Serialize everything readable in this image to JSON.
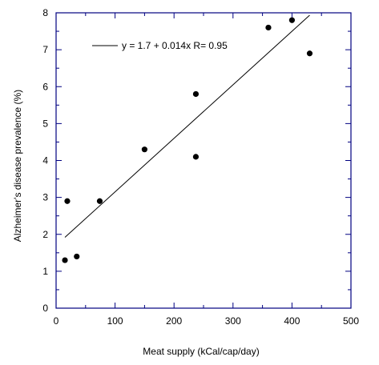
{
  "chart_data": {
    "type": "scatter",
    "xlabel": "Meat supply (kCal/cap/day)",
    "ylabel": "Alzheimer's disease prevalence (%)",
    "xlim": [
      0,
      500
    ],
    "ylim": [
      0,
      8
    ],
    "x_ticks": [
      0,
      100,
      200,
      300,
      400,
      500
    ],
    "y_ticks": [
      0,
      1,
      2,
      3,
      4,
      5,
      6,
      7,
      8
    ],
    "x_tick_labels": [
      "0",
      "100",
      "200",
      "300",
      "400",
      "500"
    ],
    "y_tick_labels": [
      "0",
      "1",
      "2",
      "3",
      "4",
      "5",
      "6",
      "7",
      "8"
    ],
    "grid": false,
    "legend_position": "top-left",
    "series": [
      {
        "x": [
          15,
          19,
          35,
          74,
          150,
          237,
          237,
          360,
          400,
          430
        ],
        "y": [
          1.3,
          2.9,
          1.4,
          2.9,
          4.3,
          5.8,
          4.1,
          7.6,
          7.8,
          6.9
        ]
      }
    ],
    "fit_line": {
      "label": "y = 1.7 + 0.014x   R= 0.95",
      "x_range": [
        15,
        430
      ],
      "intercept": 1.7,
      "slope": 0.0145
    },
    "colors": {
      "points": "#000000",
      "line": "#000000",
      "axis": "#000080"
    }
  }
}
